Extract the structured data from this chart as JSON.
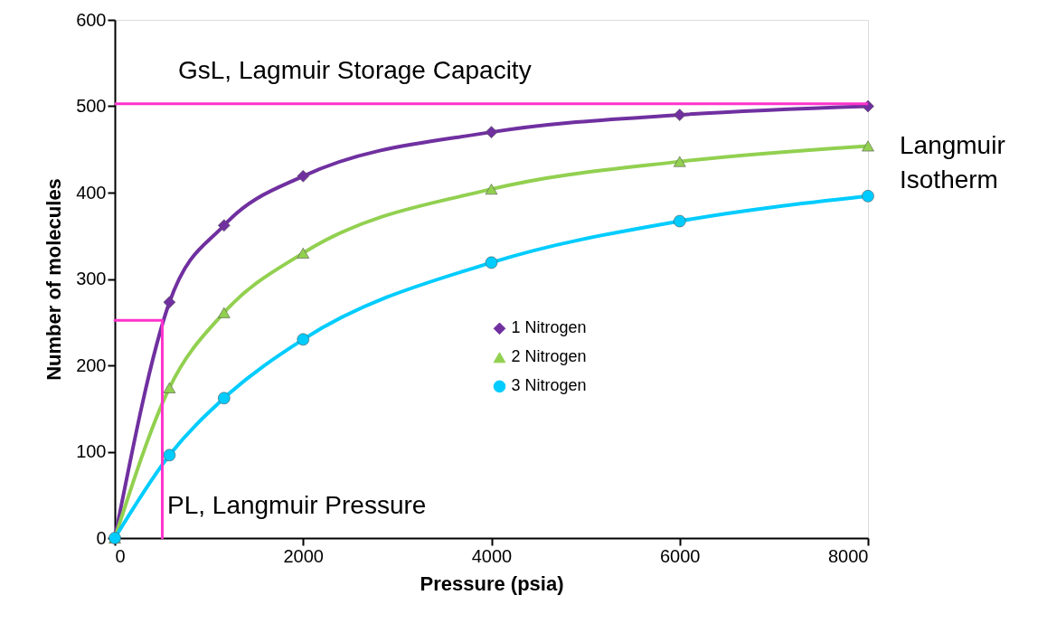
{
  "chart_data": {
    "type": "line",
    "xlabel": "Pressure (psia)",
    "ylabel": "Number of molecules",
    "xlim": [
      0,
      8000
    ],
    "xticks": [
      0,
      2000,
      4000,
      6000,
      8000
    ],
    "ylim": [
      0,
      600
    ],
    "yticks": [
      0,
      100,
      200,
      300,
      400,
      500,
      600
    ],
    "grid": false,
    "legend": "bottom right",
    "series": [
      {
        "name": "1 Nitrogen",
        "color": "#7030a0",
        "marker": "diamond",
        "x": [
          0,
          580,
          1160,
          2000,
          4000,
          6000,
          8000
        ],
        "values": [
          0,
          273,
          362,
          419,
          470,
          490,
          500
        ]
      },
      {
        "name": "2 Nitrogen",
        "color": "#92d050",
        "marker": "triangle",
        "x": [
          0,
          580,
          1160,
          2000,
          4000,
          6000,
          8000
        ],
        "values": [
          0,
          174,
          261,
          330,
          404,
          436,
          454
        ]
      },
      {
        "name": "3 Nitrogen",
        "color": "#00ccff",
        "marker": "circle",
        "x": [
          0,
          580,
          1160,
          2000,
          4000,
          6000,
          8000
        ],
        "values": [
          0,
          96,
          162,
          230,
          319,
          367,
          396
        ]
      },
      {
        "type": "line",
        "color": "#ff33cc",
        "marker": "none",
        "x": [
          0,
          504,
          504
        ],
        "values": [
          252,
          252,
          0
        ]
      }
    ],
    "ref_lines": [
      {
        "axis": "y",
        "value": 503,
        "label": "GsL, Lagmuir Storage Capacity",
        "color": "#ff33cc"
      }
    ],
    "annotations": [
      "PL, Langmuir Pressure",
      "Langmuir Isotherm"
    ]
  }
}
